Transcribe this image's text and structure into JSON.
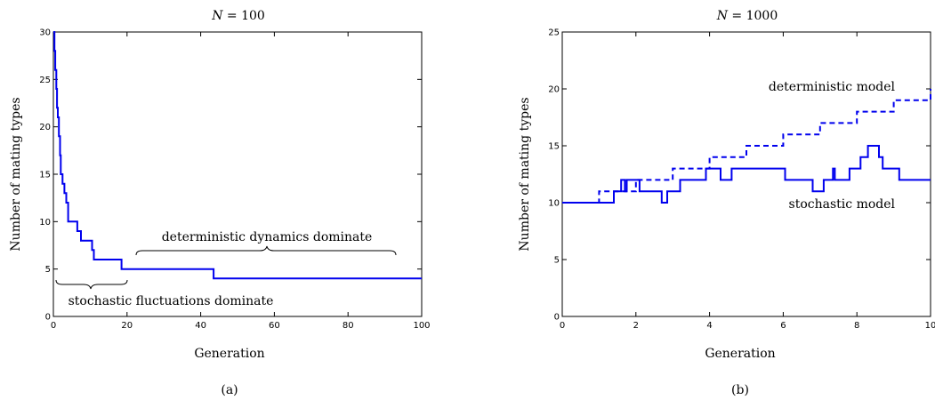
{
  "figure": {
    "panel_labels": [
      "(a)",
      "(b)"
    ]
  },
  "chart_data": [
    {
      "type": "line",
      "title_var": "N",
      "title_rest": " = 100",
      "xlabel": "Generation",
      "ylabel": "Number of mating types",
      "xlim": [
        0,
        100
      ],
      "ylim": [
        0,
        30
      ],
      "xticks": [
        0,
        20,
        40,
        60,
        80,
        100
      ],
      "yticks": [
        0,
        5,
        10,
        15,
        20,
        25,
        30
      ],
      "series": [
        {
          "style": "solid",
          "step": true,
          "color": "#0000ee",
          "x": [
            0,
            0.3,
            0.5,
            0.8,
            1.0,
            1.2,
            1.5,
            1.8,
            2.0,
            2.5,
            3.0,
            3.5,
            4.0,
            6.5,
            7.5,
            10.5,
            11.0,
            18.5,
            43.5,
            100
          ],
          "y": [
            30,
            28,
            26,
            24,
            22,
            21,
            19,
            17,
            15,
            14,
            13,
            12,
            10,
            9,
            8,
            7,
            6,
            5,
            4,
            4
          ]
        }
      ],
      "annotations": [
        {
          "text": "deterministic dynamics dominate",
          "brace_x": [
            22,
            93
          ]
        },
        {
          "text": "stochastic fluctuations dominate",
          "brace_x": [
            0,
            20
          ]
        }
      ]
    },
    {
      "type": "line",
      "title_var": "N",
      "title_rest": " = 1000",
      "xlabel": "Generation",
      "ylabel": "Number of mating types",
      "xlim": [
        0,
        10
      ],
      "ylim": [
        0,
        25
      ],
      "xticks": [
        0,
        2,
        4,
        6,
        8,
        10
      ],
      "yticks": [
        0,
        5,
        10,
        15,
        20,
        25
      ],
      "series": [
        {
          "name": "deterministic model",
          "style": "dashed",
          "step": true,
          "color": "#0000ee",
          "x": [
            0,
            1,
            2,
            3,
            4,
            5,
            6,
            7,
            8,
            9,
            10
          ],
          "y": [
            10,
            11,
            12,
            13,
            14,
            15,
            16,
            17,
            18,
            19,
            20
          ]
        },
        {
          "name": "stochastic model",
          "style": "solid",
          "step": true,
          "color": "#0000ee",
          "x": [
            0,
            1.4,
            1.6,
            1.7,
            1.75,
            2.1,
            2.7,
            2.85,
            3.2,
            3.9,
            4.3,
            4.6,
            6.05,
            6.8,
            7.1,
            7.35,
            7.4,
            7.8,
            8.1,
            8.3,
            8.6,
            8.7,
            9.15,
            10
          ],
          "y": [
            10,
            11,
            12,
            11,
            12,
            11,
            10,
            11,
            12,
            13,
            12,
            13,
            12,
            11,
            12,
            13,
            12,
            13,
            14,
            15,
            14,
            13,
            12,
            12
          ]
        }
      ],
      "annotations": []
    }
  ]
}
